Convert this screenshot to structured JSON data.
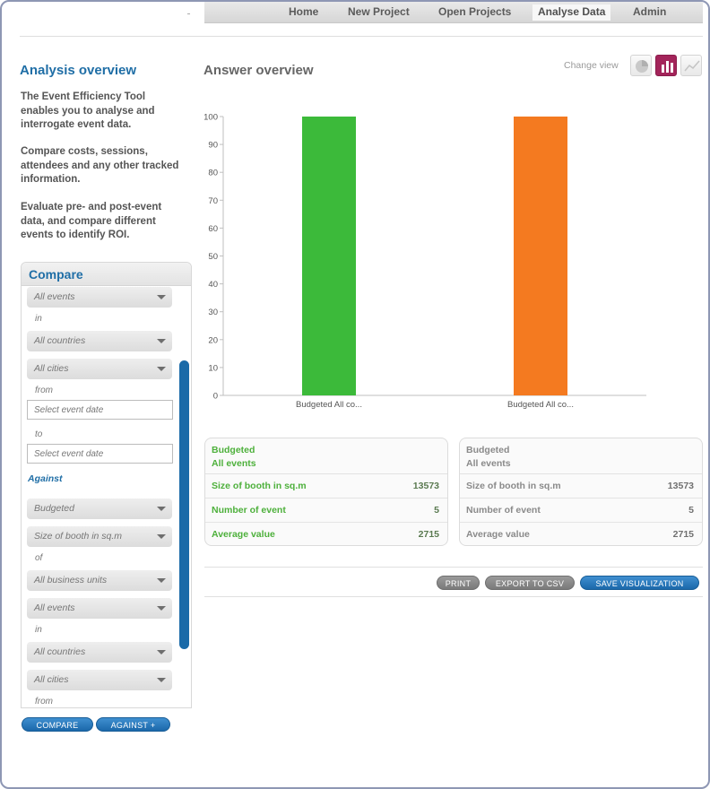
{
  "nav": {
    "items": [
      "Home",
      "New Project",
      "Open Projects",
      "Analyse Data",
      "Admin"
    ],
    "active": "Analyse Data"
  },
  "sidebar": {
    "title": "Analysis overview",
    "paragraphs": [
      "The Event Efficiency Tool enables you to analyse and interrogate event data.",
      "Compare costs, sessions, attendees and any other tracked information.",
      "Evaluate pre- and post-event data, and compare different events to identify ROI."
    ]
  },
  "compare": {
    "title": "Compare",
    "events_select": "All events",
    "in_label": "in",
    "countries_select": "All countries",
    "cities_select": "All cities",
    "from_label": "from",
    "from_placeholder": "Select event date",
    "to_label": "to",
    "to_placeholder": "Select event date",
    "against_label": "Against",
    "against_select": "Budgeted",
    "metric_select": "Size of booth in sq.m",
    "of_label": "of",
    "units_select": "All business units",
    "events2_select": "All events",
    "in2_label": "in",
    "countries2_select": "All countries",
    "cities2_select": "All cities",
    "from2_label": "from",
    "compare_button": "COMPARE",
    "against_button": "AGAINST +"
  },
  "main": {
    "title": "Answer overview",
    "change_view_label": "Change view"
  },
  "chart_data": {
    "type": "bar",
    "categories": [
      "Budgeted All co...",
      "Budgeted All co..."
    ],
    "values": [
      100,
      100
    ],
    "colors": [
      "#3cba3a",
      "#f47a20"
    ],
    "ylim": [
      0,
      100
    ],
    "yticks": [
      0,
      10,
      20,
      30,
      40,
      50,
      60,
      70,
      80,
      90,
      100
    ],
    "grid": false
  },
  "cards": [
    {
      "title_line1": "Budgeted",
      "title_line2": "All events",
      "rows": [
        {
          "label": "Size of booth in sq.m",
          "value": "13573"
        },
        {
          "label": "Number of event",
          "value": "5"
        },
        {
          "label": "Average value",
          "value": "2715"
        }
      ]
    },
    {
      "title_line1": "Budgeted",
      "title_line2": "All events",
      "rows": [
        {
          "label": "Size of booth in sq.m",
          "value": "13573"
        },
        {
          "label": "Number of event",
          "value": "5"
        },
        {
          "label": "Average value",
          "value": "2715"
        }
      ]
    }
  ],
  "actions": {
    "print": "PRINT",
    "export": "EXPORT TO CSV",
    "save": "SAVE VISUALIZATION"
  },
  "colors": {
    "accent_blue": "#1f6ea6",
    "active_view": "#a3245a",
    "green_text": "#4db03b"
  }
}
